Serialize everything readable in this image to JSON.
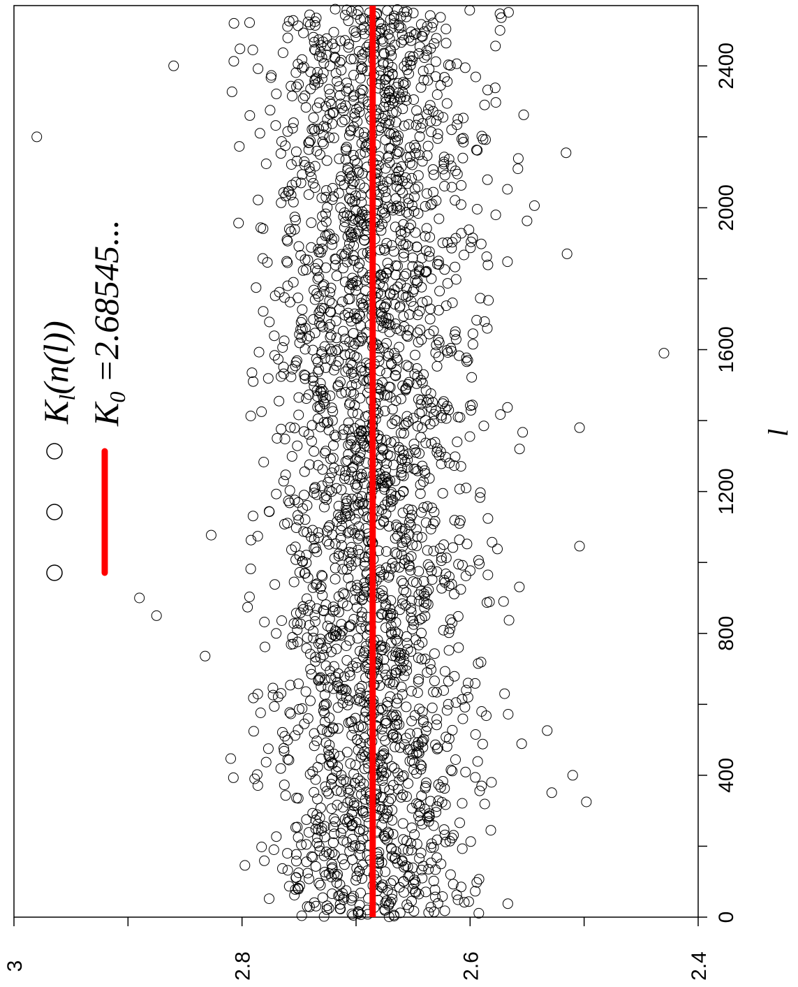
{
  "chart_data": {
    "type": "scatter",
    "orientation": "rotated-90",
    "xlabel": "l",
    "ylabel": "",
    "xlim": [
      0,
      2570
    ],
    "ylim": [
      3.0,
      2.4
    ],
    "x_ticks": [
      "0",
      "400",
      "800",
      "1200",
      "1600",
      "2000",
      "2400"
    ],
    "y_ticks": [
      "3",
      "2.8",
      "2.6",
      "2.4"
    ],
    "grid": false,
    "legend_position": "top-left",
    "series": [
      {
        "name": "K_l(n(l))",
        "marker": "open-circle",
        "color": "#000000",
        "n_points": 2560,
        "x_range": [
          1,
          2560
        ],
        "center": 2.685,
        "spread_sd": 0.045,
        "notable_points": [
          {
            "x": 2200,
            "y": 2.98
          },
          {
            "x": 1590,
            "y": 2.43
          },
          {
            "x": 1380,
            "y": 2.504
          },
          {
            "x": 325,
            "y": 2.498
          },
          {
            "x": 400,
            "y": 2.51
          },
          {
            "x": 900,
            "y": 2.89
          },
          {
            "x": 850,
            "y": 2.875
          },
          {
            "x": 1870,
            "y": 2.515
          },
          {
            "x": 2400,
            "y": 2.86
          }
        ]
      },
      {
        "name": "K_0 =2.68545...",
        "marker": "line",
        "color": "#ff0000",
        "y": 2.68545,
        "x_range": [
          0,
          2570
        ]
      }
    ],
    "legend": {
      "entry1_main": "K",
      "entry1_sub": "l",
      "entry1_rest": "(n(l))",
      "entry2_main": "K",
      "entry2_sub": "0",
      "entry2_rest": " =2.68545..."
    }
  }
}
